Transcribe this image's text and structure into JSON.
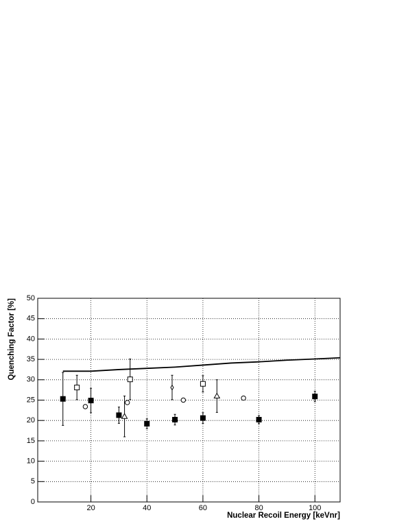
{
  "chart_data": {
    "type": "scatter",
    "x_label": "Nuclear Recoil Energy [keVnr]",
    "y_label": "Quenching Factor [%]",
    "xlim": [
      1,
      109
    ],
    "ylim": [
      0,
      50
    ],
    "xticks": [
      20,
      40,
      60,
      80,
      100
    ],
    "yticks": [
      0,
      5,
      10,
      15,
      20,
      25,
      30,
      35,
      40,
      45,
      50
    ],
    "grid": true,
    "series": [
      {
        "marker": "filled-square",
        "color": "#000000",
        "x": [
          10,
          20,
          30,
          40,
          50,
          60,
          80,
          100
        ],
        "values": [
          25.3,
          24.9,
          21.3,
          19.2,
          20.2,
          20.6,
          20.2,
          25.9
        ],
        "errors": [
          6.5,
          3,
          2,
          1.2,
          1.3,
          1.3,
          1,
          1.3
        ]
      },
      {
        "marker": "open-square",
        "color": "#000000",
        "x": [
          15,
          34,
          60
        ],
        "values": [
          28.1,
          30.1,
          29.0
        ],
        "errors": [
          3,
          5,
          2
        ]
      },
      {
        "marker": "open-circle",
        "color": "#000000",
        "x": [
          18,
          33,
          53,
          74.5
        ],
        "values": [
          23.4,
          24.4,
          25.0,
          25.5
        ]
      },
      {
        "marker": "open-triangle",
        "color": "#000000",
        "x": [
          32,
          65
        ],
        "values": [
          21,
          26
        ],
        "errors": [
          5,
          4
        ]
      },
      {
        "marker": "open-diamond",
        "color": "#000000",
        "x": [
          49
        ],
        "values": [
          28.1
        ],
        "errors": [
          3
        ]
      },
      {
        "marker": "line",
        "color": "#000000",
        "x": [
          10,
          20,
          30,
          40,
          50,
          60,
          70,
          80,
          90,
          100,
          109
        ],
        "values": [
          32.1,
          32.1,
          32.5,
          32.8,
          33.1,
          33.6,
          34.1,
          34.4,
          34.8,
          35.1,
          35.4
        ]
      }
    ]
  }
}
